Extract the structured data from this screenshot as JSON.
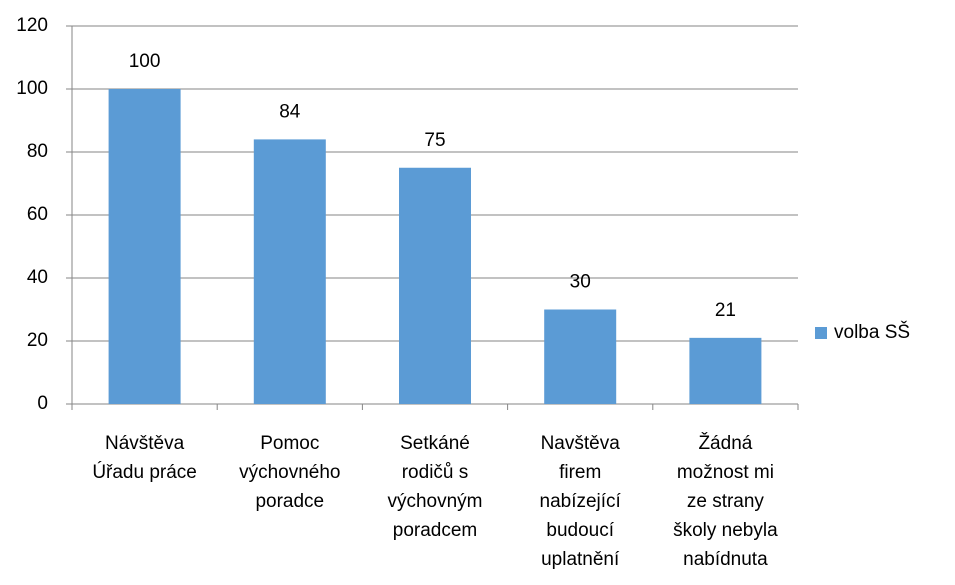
{
  "chart_data": {
    "type": "bar",
    "categories": [
      "Návštěva\nÚřadu práce",
      "Pomoc\nvýchovného\nporadce",
      "Setkáné\nrodičů s\nvýchovným\nporadcem",
      "Navštěva\nfirem\nnabízející\nbudoucí\nuplatnění",
      "Žádná\nmožnost mi\nze strany\nškoly nebyla\nnabídnuta"
    ],
    "series": [
      {
        "name": "volba SŠ",
        "color": "#5b9bd5",
        "values": [
          100,
          84,
          75,
          30,
          21
        ]
      }
    ],
    "ylim": [
      0,
      120
    ],
    "yticks": [
      0,
      20,
      40,
      60,
      80,
      100,
      120
    ],
    "grid": true,
    "legend": "right"
  }
}
